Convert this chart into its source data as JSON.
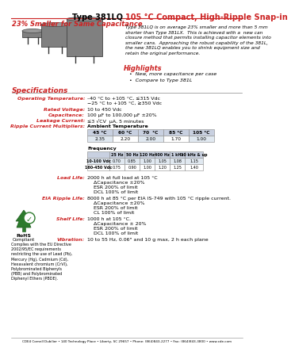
{
  "title_black": "Type 381LQ ",
  "title_red": "105 °C Compact, High-Ripple Snap-in",
  "subtitle": "23% Smaller for Same Capacitance",
  "bg_color": "#ffffff",
  "description": "Type 381LQ is on average 23% smaller and more than 5 mm\nshorter than Type 381LX.  This is achieved with a  new can\nclosure method that permits installing capacitor elements into\nsmaller cans.  Approaching the robust capability of the 381L,\nthe new 381LQ enables you to shrink equipment size and\nretain the original performance.",
  "highlights_title": "Highlights",
  "highlights": [
    "New, more capacitance per case",
    "Compare to Type 381L"
  ],
  "specs_title": "Specifications",
  "specs": [
    [
      "Operating Temperature:",
      "–40 °C to +105 °C, ≤315 Vdc\n−25 °C to +105 °C, ≥350 Vdc"
    ],
    [
      "Rated Voltage:",
      "10 to 450 Vdc"
    ],
    [
      "Capacitance:",
      "100 μF to 100,000 μF ±20%"
    ],
    [
      "Leakage Current:",
      "≤3 √CV  μA, 5 minutes"
    ],
    [
      "Ripple Current Multipliers:",
      "Ambient Temperature"
    ]
  ],
  "amb_temp_headers": [
    "45 °C",
    "60 °C",
    "70  °C",
    "85 °C",
    "105 °C"
  ],
  "amb_temp_values": [
    "2.35",
    "2.20",
    "2.00",
    "1.70",
    "1.00"
  ],
  "freq_header": "Frequency",
  "freq_headers": [
    "25 Hz",
    "50 Hz",
    "120 Hz",
    "400 Hz",
    "1 kHz",
    "10 kHz & up"
  ],
  "freq_rows": [
    [
      "10-100 Vdc",
      "0.70",
      "0.85",
      "1.00",
      "1.05",
      "1.08",
      "1.15"
    ],
    [
      "160-450 Vdc",
      "0.75",
      "0.90",
      "1.00",
      "1.20",
      "1.25",
      "1.40"
    ]
  ],
  "load_life_label": "Load Life:",
  "load_life_text": "2000 h at full load at 105 °C\nΔCapacitance ±20%\nESR 200% of limit\nDCL 100% of limit",
  "eia_label": "EIA Ripple Life:",
  "eia_text": "8000 h at 85 °C per EIA IS-749 with 105 °C ripple current.\nΔCapacitance ±20%\nESR 200% of limit\nCL 100% of limit",
  "shelf_label": "Shelf Life:",
  "shelf_text": "1000 h at 105 °C.\nΔCapacitance ± 20%\nESR 200% of limit\nDCL 100% of limit",
  "vib_label": "Vibration:",
  "vib_text": "10 to 55 Hz, 0.06\" and 10 g max, 2 h each plane",
  "footer": "CDE4 Cornell Dubilier • 140 Technology Place • Liberty, SC 29657 • Phone: (864)843-2277 • Fax: (864)843-3800 • www.cde.com",
  "rohs_text": "Complies with the EU Directive\n2002/95/EC requirements\nrestricting the use of Lead (Pb),\nMercury (Hg), Cadmium (Cd),\nHexavalent chromium (CrVI),\nPolybrominated Biphenyls\n(PBB) and Polybrominated\nDiphenyl Ethers (PBDE).",
  "label_color": "#cc2222",
  "table_header_bg": "#c8d0e0",
  "table_alt_bg": "#e0e8f0",
  "table_white_bg": "#ffffff"
}
